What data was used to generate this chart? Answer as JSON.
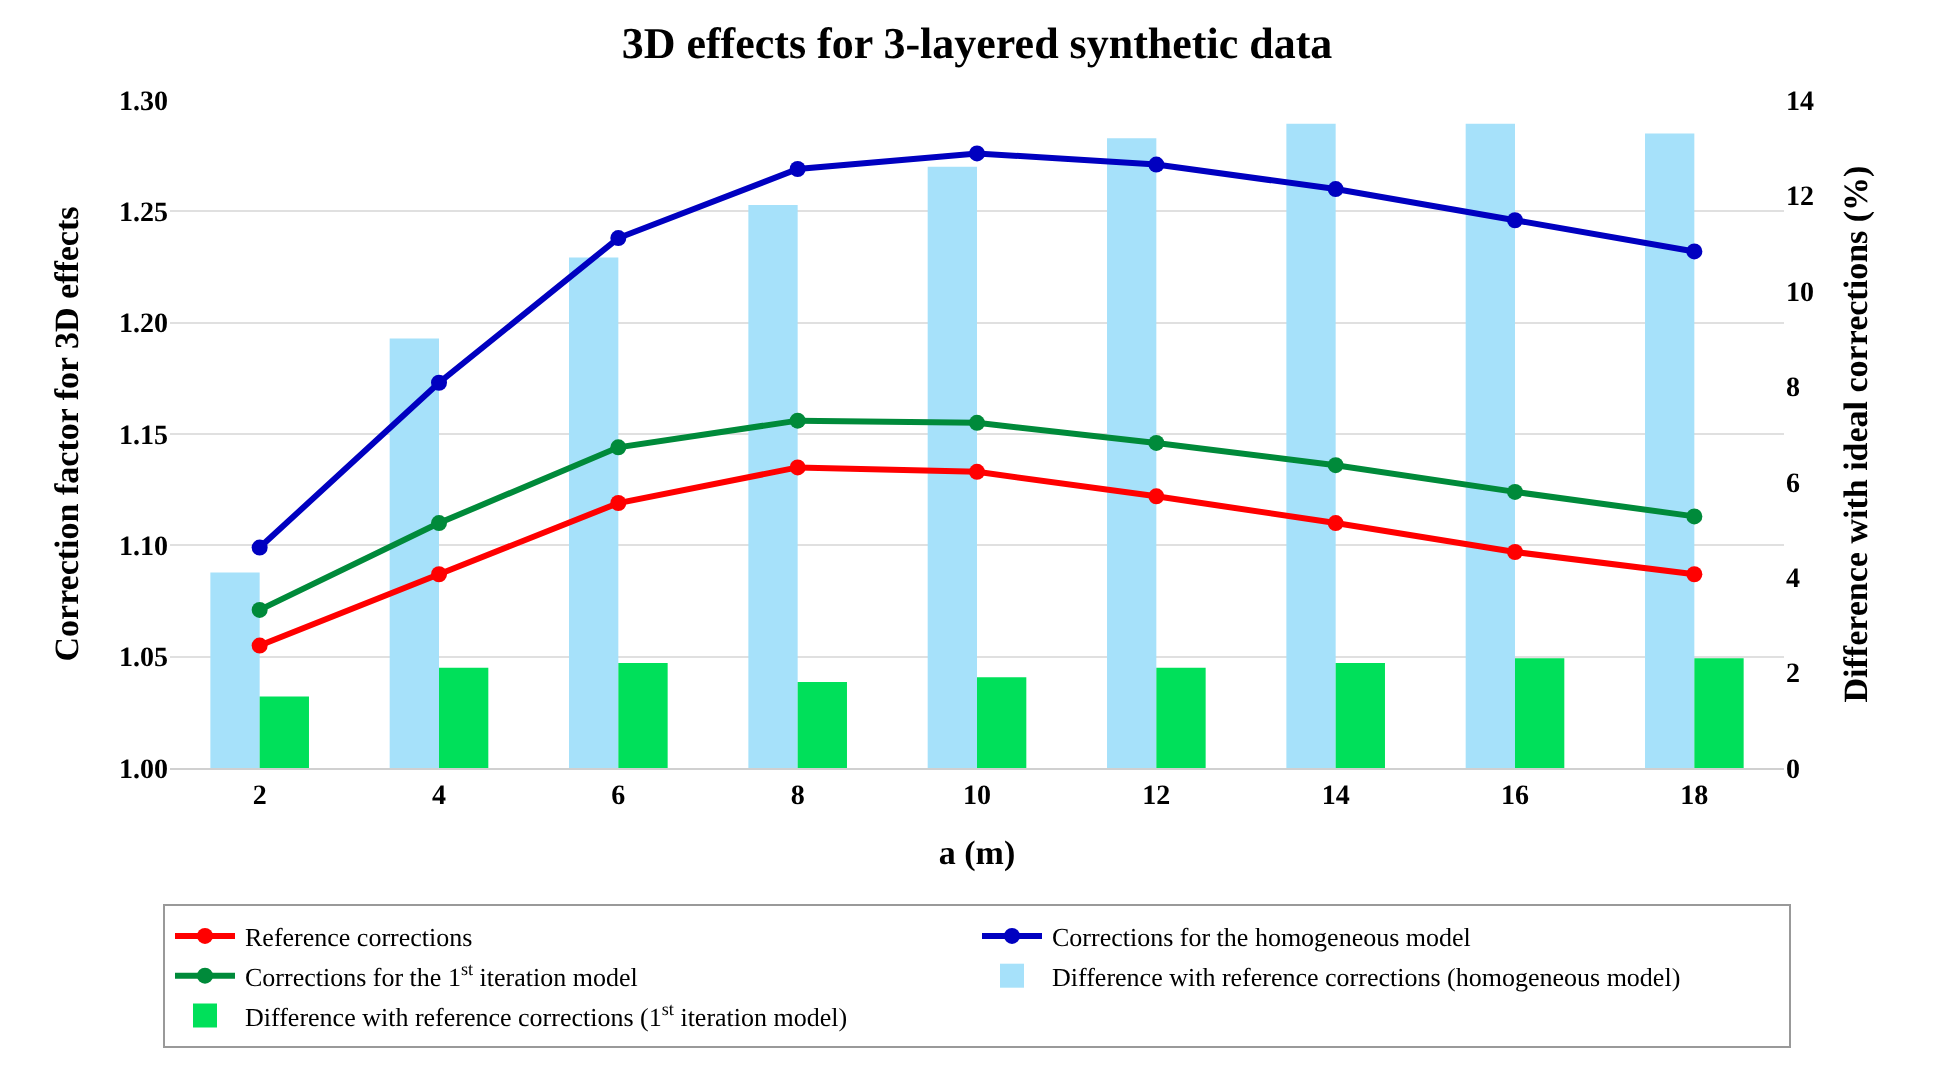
{
  "chart_data": {
    "type": "line",
    "title": "3D effects for 3-layered synthetic data",
    "xlabel": "a (m)",
    "ylabel": "Correction factor for 3D effects",
    "y2label": "Difference with ideal corrections (%)",
    "categories": [
      "2",
      "4",
      "6",
      "8",
      "10",
      "12",
      "14",
      "16",
      "18"
    ],
    "series": [
      {
        "name": "Reference corrections",
        "color": "#ff0000",
        "values": [
          1.055,
          1.087,
          1.119,
          1.135,
          1.133,
          1.122,
          1.11,
          1.097,
          1.087
        ]
      },
      {
        "name": "Corrections for the homogeneous model",
        "color": "#0000c0",
        "values": [
          1.099,
          1.173,
          1.238,
          1.269,
          1.276,
          1.271,
          1.26,
          1.246,
          1.232
        ]
      },
      {
        "name": "Corrections for the 1$^{st}$ iteration model",
        "color": "#008a3a",
        "values": [
          1.071,
          1.11,
          1.144,
          1.156,
          1.155,
          1.146,
          1.136,
          1.124,
          1.113
        ]
      },
      {
        "name": "Difference with reference corrections (homogeneous model)",
        "type": "bar",
        "axis": "y2",
        "color": "#a6e1fa",
        "values": [
          4.1,
          9.0,
          10.7,
          11.8,
          12.6,
          13.2,
          13.5,
          13.5,
          13.3
        ]
      },
      {
        "name": "Difference with reference corrections (1$^{st}$ iteration model)",
        "type": "bar",
        "axis": "y2",
        "color": "#00e05a",
        "values": [
          1.5,
          2.1,
          2.2,
          1.8,
          1.9,
          2.1,
          2.2,
          2.3,
          2.3
        ]
      }
    ],
    "ylim": [
      1.0,
      1.3
    ],
    "yticks": [
      {
        "value": 1.0,
        "label": "1.00"
      },
      {
        "value": 1.05,
        "label": "1.05"
      },
      {
        "value": 1.1,
        "label": "1.10"
      },
      {
        "value": 1.15,
        "label": "1.15"
      },
      {
        "value": 1.2,
        "label": "1.20"
      },
      {
        "value": 1.25,
        "label": "1.25"
      },
      {
        "value": 1.3,
        "label": "1.30"
      }
    ],
    "y2lim": [
      0,
      14
    ],
    "y2ticks": [
      0,
      2,
      4,
      6,
      8,
      10,
      12,
      14
    ],
    "grid": "y",
    "legend": "bottom",
    "marker": "circle",
    "line_style": "solid"
  }
}
